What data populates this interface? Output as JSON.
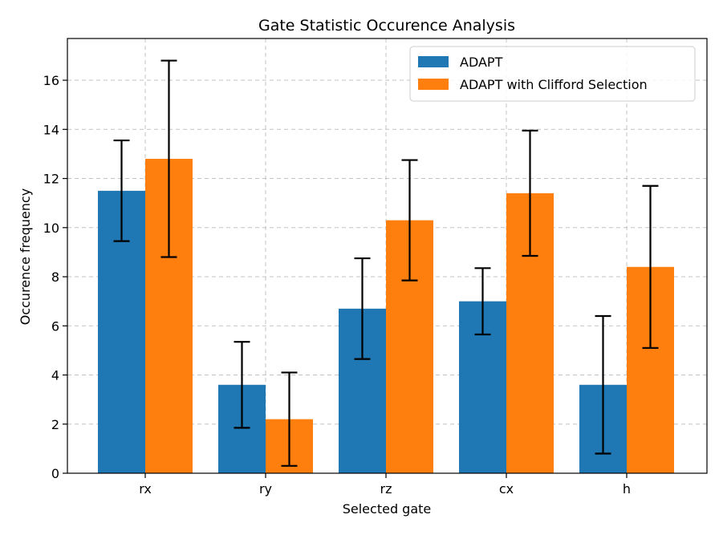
{
  "chart_data": {
    "type": "bar",
    "title": "Gate Statistic Occurence Analysis",
    "xlabel": "Selected gate",
    "ylabel": "Occurence frequency",
    "categories": [
      "rx",
      "ry",
      "rz",
      "cx",
      "h"
    ],
    "ylim": [
      0,
      17.7
    ],
    "yticks": [
      0,
      2,
      4,
      6,
      8,
      10,
      12,
      14,
      16
    ],
    "ytick_labels": [
      "0",
      "2",
      "4",
      "6",
      "8",
      "10",
      "12",
      "14",
      "16"
    ],
    "grid": true,
    "legend_position": "top-right",
    "series": [
      {
        "name": "ADAPT",
        "color": "#1f77b4",
        "values": [
          11.5,
          3.6,
          6.7,
          7.0,
          3.6
        ],
        "errors": [
          2.05,
          1.75,
          2.05,
          1.35,
          2.8
        ]
      },
      {
        "name": "ADAPT with Clifford Selection",
        "color": "#ff7f0e",
        "values": [
          12.8,
          2.2,
          10.3,
          11.4,
          8.4
        ],
        "errors": [
          4.0,
          1.9,
          2.45,
          2.55,
          3.3
        ]
      }
    ]
  }
}
